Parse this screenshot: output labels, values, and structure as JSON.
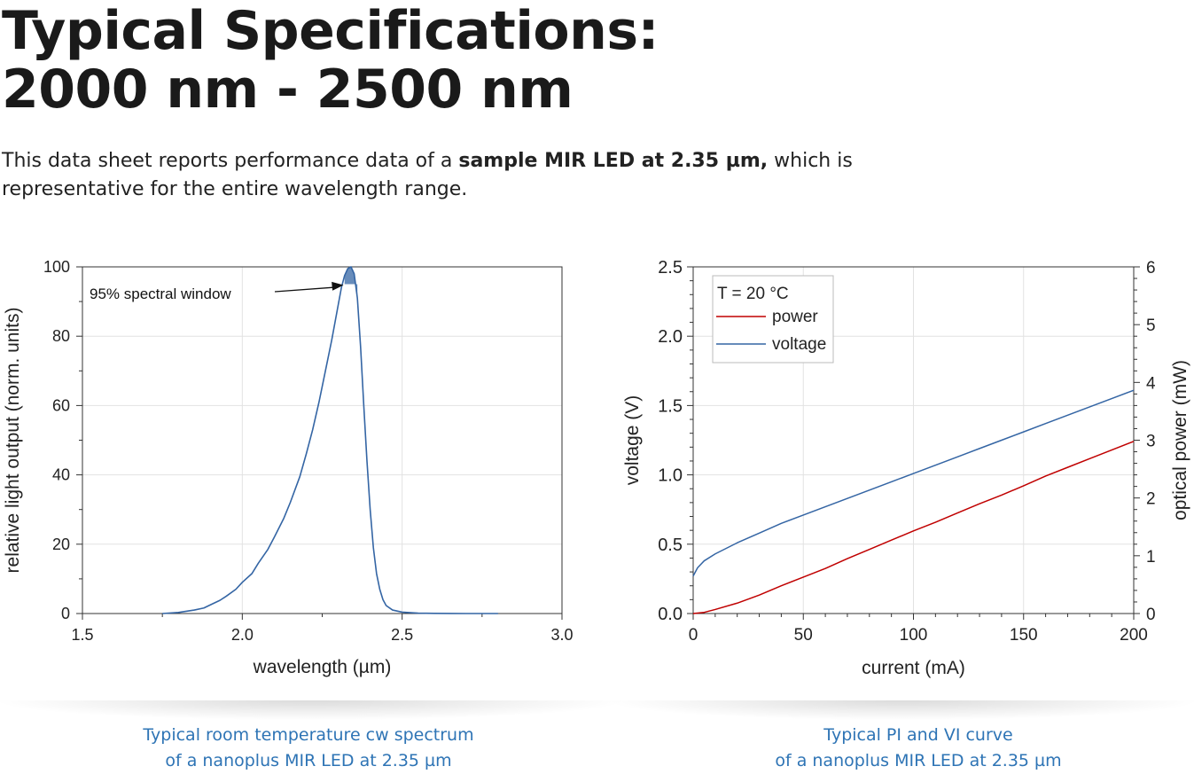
{
  "header": {
    "title_line1": "Typical Specifications:",
    "title_line2": "2000 nm - 2500 nm"
  },
  "intro": {
    "before": "This data sheet reports performance data of a ",
    "bold": "sample MIR LED at 2.35 µm,",
    "after": " which is representative for the entire wavelength range."
  },
  "captions": {
    "left_line1": "Typical room temperature cw spectrum",
    "left_line2": "of a nanoplus MIR LED at 2.35 µm",
    "right_line1": "Typical PI and VI curve",
    "right_line2": "of a nanoplus MIR LED at 2.35 µm"
  },
  "chart_data": [
    {
      "type": "line",
      "xlabel": "wavelength (µm)",
      "ylabel": "relative light output (norm. units)",
      "xlim": [
        1.5,
        3.0
      ],
      "ylim": [
        0,
        100
      ],
      "xticks": [
        1.5,
        2.0,
        2.5,
        3.0
      ],
      "xtick_labels": [
        "1.5",
        "2.0",
        "2.5",
        "3.0"
      ],
      "yticks": [
        0,
        20,
        40,
        60,
        80,
        100
      ],
      "ytick_labels": [
        "0",
        "20",
        "40",
        "60",
        "80",
        "100"
      ],
      "grid": true,
      "annotation": "95% spectral window",
      "series": [
        {
          "color": "#3465a4",
          "x": [
            1.75,
            1.8,
            1.85,
            1.88,
            1.9,
            1.93,
            1.95,
            1.98,
            2.0,
            2.03,
            2.05,
            2.08,
            2.1,
            2.13,
            2.15,
            2.18,
            2.2,
            2.22,
            2.24,
            2.26,
            2.28,
            2.3,
            2.31,
            2.32,
            2.33,
            2.34,
            2.35,
            2.36,
            2.37,
            2.38,
            2.39,
            2.4,
            2.41,
            2.42,
            2.43,
            2.44,
            2.45,
            2.47,
            2.5,
            2.55,
            2.6,
            2.7,
            2.8
          ],
          "y": [
            0,
            0.3,
            1.0,
            1.6,
            2.5,
            3.8,
            5.0,
            7.0,
            9.0,
            11.5,
            14.5,
            18.5,
            22.0,
            27.5,
            32.0,
            39.5,
            46.0,
            53.0,
            61.0,
            70.0,
            79.0,
            89.0,
            94.0,
            97.5,
            99.5,
            100,
            98.0,
            91.0,
            77.0,
            60.0,
            44.0,
            30.0,
            19.0,
            11.5,
            7.0,
            4.0,
            2.3,
            1.0,
            0.4,
            0.1,
            0.05,
            0,
            0
          ]
        }
      ],
      "window_band": [
        2.325,
        2.355
      ]
    },
    {
      "type": "line",
      "xlabel": "current (mA)",
      "ylabel": "voltage (V)",
      "y2label": "optical power (mW)",
      "xlim": [
        0,
        200
      ],
      "ylim": [
        0,
        2.5
      ],
      "y2lim": [
        0,
        6
      ],
      "xticks": [
        0,
        50,
        100,
        150,
        200
      ],
      "xtick_labels": [
        "0",
        "50",
        "100",
        "150",
        "200"
      ],
      "yticks": [
        0,
        0.5,
        1.0,
        1.5,
        2.0,
        2.5
      ],
      "ytick_labels": [
        "0.0",
        "0.5",
        "1.0",
        "1.5",
        "2.0",
        "2.5"
      ],
      "y2ticks": [
        0,
        1,
        2,
        3,
        4,
        5,
        6
      ],
      "y2tick_labels": [
        "0",
        "1",
        "2",
        "3",
        "4",
        "5",
        "6"
      ],
      "grid": true,
      "legend_title": "T = 20 °C",
      "legend_position": "top-left",
      "series": [
        {
          "name": "power",
          "color": "#c00000",
          "axis": "right",
          "x": [
            0,
            5,
            10,
            20,
            30,
            40,
            50,
            60,
            70,
            80,
            90,
            100,
            110,
            120,
            130,
            140,
            150,
            160,
            170,
            180,
            190,
            200
          ],
          "y": [
            0,
            0.02,
            0.07,
            0.18,
            0.32,
            0.48,
            0.63,
            0.78,
            0.95,
            1.11,
            1.27,
            1.43,
            1.58,
            1.74,
            1.9,
            2.05,
            2.21,
            2.38,
            2.53,
            2.68,
            2.83,
            2.98
          ]
        },
        {
          "name": "voltage",
          "color": "#3465a4",
          "axis": "left",
          "x": [
            0,
            2,
            5,
            10,
            20,
            30,
            40,
            50,
            60,
            70,
            80,
            90,
            100,
            110,
            120,
            130,
            140,
            150,
            160,
            170,
            180,
            190,
            200
          ],
          "y": [
            0.27,
            0.33,
            0.38,
            0.43,
            0.51,
            0.58,
            0.65,
            0.71,
            0.77,
            0.83,
            0.89,
            0.95,
            1.01,
            1.07,
            1.13,
            1.19,
            1.25,
            1.31,
            1.37,
            1.43,
            1.49,
            1.55,
            1.61
          ]
        }
      ]
    }
  ]
}
